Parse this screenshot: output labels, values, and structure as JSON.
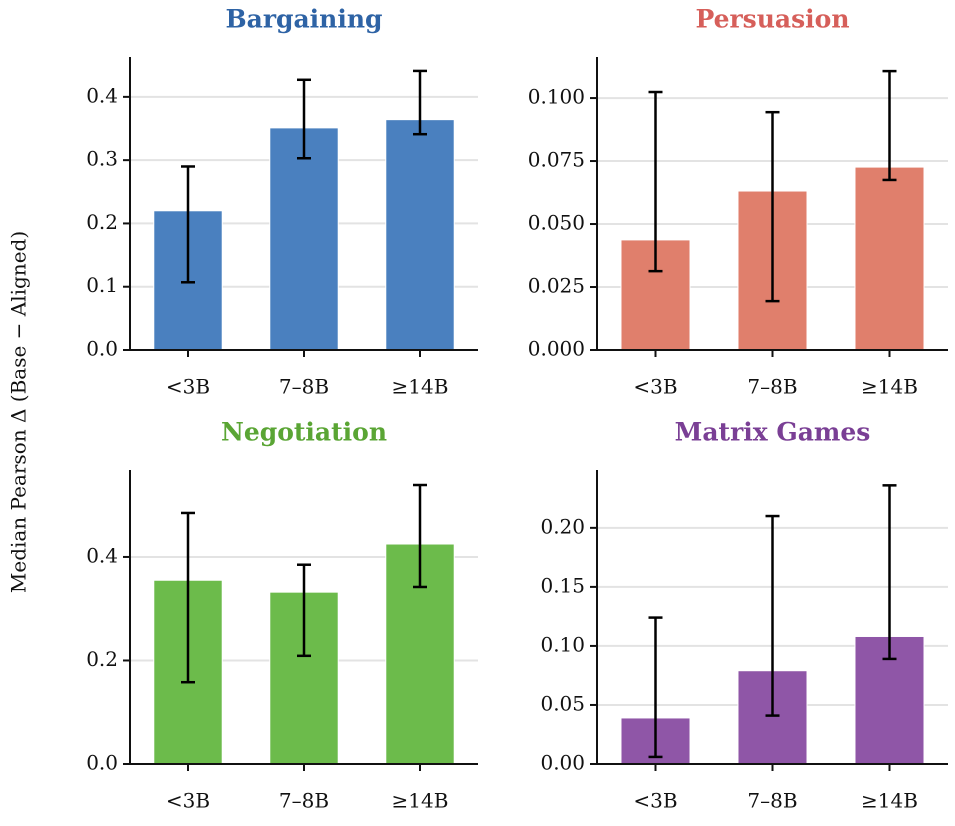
{
  "ylabel": "Median Pearson Δ (Base − Aligned)",
  "chart_data": [
    {
      "type": "bar",
      "title": "Bargaining",
      "title_color": "#2e63a5",
      "color": "#4a80bf",
      "categories": [
        "<3B",
        "7–8B",
        "≥14B"
      ],
      "values": [
        0.22,
        0.351,
        0.364
      ],
      "ci_low": [
        0.107,
        0.303,
        0.341
      ],
      "ci_high": [
        0.29,
        0.427,
        0.441
      ],
      "ylim": [
        0,
        0.463
      ],
      "yticks": [
        {
          "value": 0,
          "label": "0.0"
        },
        0.1,
        0.2,
        0.3,
        0.4
      ],
      "grid": true
    },
    {
      "type": "bar",
      "title": "Persuasion",
      "title_color": "#d65f5a",
      "color": "#e07f6c",
      "categories": [
        "<3B",
        "7–8B",
        "≥14B"
      ],
      "values": [
        0.0437,
        0.0631,
        0.0726
      ],
      "ci_low": [
        0.0313,
        0.0194,
        0.0675
      ],
      "ci_high": [
        0.1024,
        0.0944,
        0.1107
      ],
      "ylim": [
        0,
        0.1163
      ],
      "yticks": [
        {
          "value": 0,
          "label": "0.000"
        },
        {
          "value": 0.025,
          "label": "0.025"
        },
        {
          "value": 0.05,
          "label": "0.050"
        },
        {
          "value": 0.075,
          "label": "0.075"
        },
        {
          "value": 0.1,
          "label": "0.100"
        }
      ],
      "grid": true
    },
    {
      "type": "bar",
      "title": "Negotiation",
      "title_color": "#5aa534",
      "color": "#6cbb4b",
      "categories": [
        "<3B",
        "7–8B",
        "≥14B"
      ],
      "values": [
        0.355,
        0.332,
        0.425
      ],
      "ci_low": [
        0.158,
        0.209,
        0.342
      ],
      "ci_high": [
        0.485,
        0.385,
        0.539
      ],
      "ylim": [
        0,
        0.568
      ],
      "yticks": [
        {
          "value": 0,
          "label": "0.0"
        },
        0.2,
        0.4
      ],
      "grid": true
    },
    {
      "type": "bar",
      "title": "Matrix Games",
      "title_color": "#7a3f95",
      "color": "#8f56a7",
      "categories": [
        "<3B",
        "7–8B",
        "≥14B"
      ],
      "values": [
        0.039,
        0.079,
        0.108
      ],
      "ci_low": [
        0.006,
        0.041,
        0.089
      ],
      "ci_high": [
        0.124,
        0.21,
        0.236
      ],
      "ylim": [
        0,
        0.249
      ],
      "yticks": [
        {
          "value": 0,
          "label": "0.00"
        },
        0.05,
        {
          "value": 0.1,
          "label": "0.10"
        },
        0.15,
        {
          "value": 0.2,
          "label": "0.20"
        }
      ],
      "grid": true
    }
  ]
}
